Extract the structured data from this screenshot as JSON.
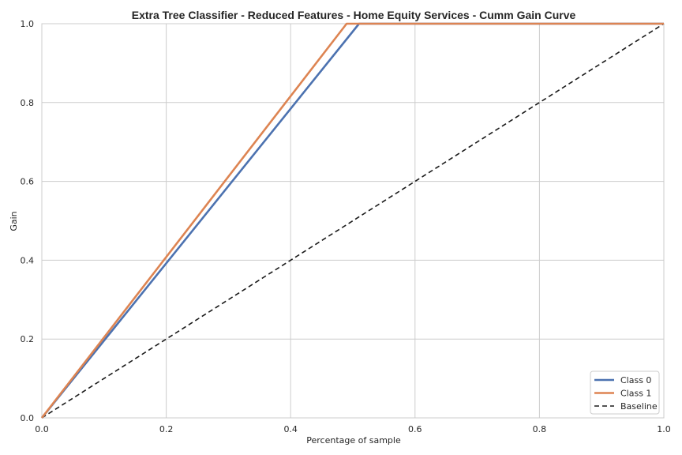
{
  "chart_data": {
    "type": "line",
    "title": "Extra Tree Classifier - Reduced Features - Home Equity Services - Cumm Gain Curve",
    "xlabel": "Percentage of sample",
    "ylabel": "Gain",
    "xlim": [
      0.0,
      1.0
    ],
    "ylim": [
      0.0,
      1.0
    ],
    "xticks": [
      "0.0",
      "0.2",
      "0.4",
      "0.6",
      "0.8",
      "1.0"
    ],
    "yticks": [
      "0.0",
      "0.2",
      "0.4",
      "0.6",
      "0.8",
      "1.0"
    ],
    "grid": true,
    "legend_position": "bottom-right",
    "series": [
      {
        "name": "Class 0",
        "color": "#4c72b0",
        "dash": "solid",
        "points": [
          [
            0.0,
            0.0
          ],
          [
            0.51,
            1.0
          ],
          [
            1.0,
            1.0
          ]
        ]
      },
      {
        "name": "Class 1",
        "color": "#dd8452",
        "dash": "solid",
        "points": [
          [
            0.0,
            0.0
          ],
          [
            0.49,
            1.0
          ],
          [
            1.0,
            1.0
          ]
        ]
      },
      {
        "name": "Baseline",
        "color": "#1a1a1a",
        "dash": "dashed",
        "points": [
          [
            0.0,
            0.0
          ],
          [
            1.0,
            1.0
          ]
        ]
      }
    ]
  }
}
